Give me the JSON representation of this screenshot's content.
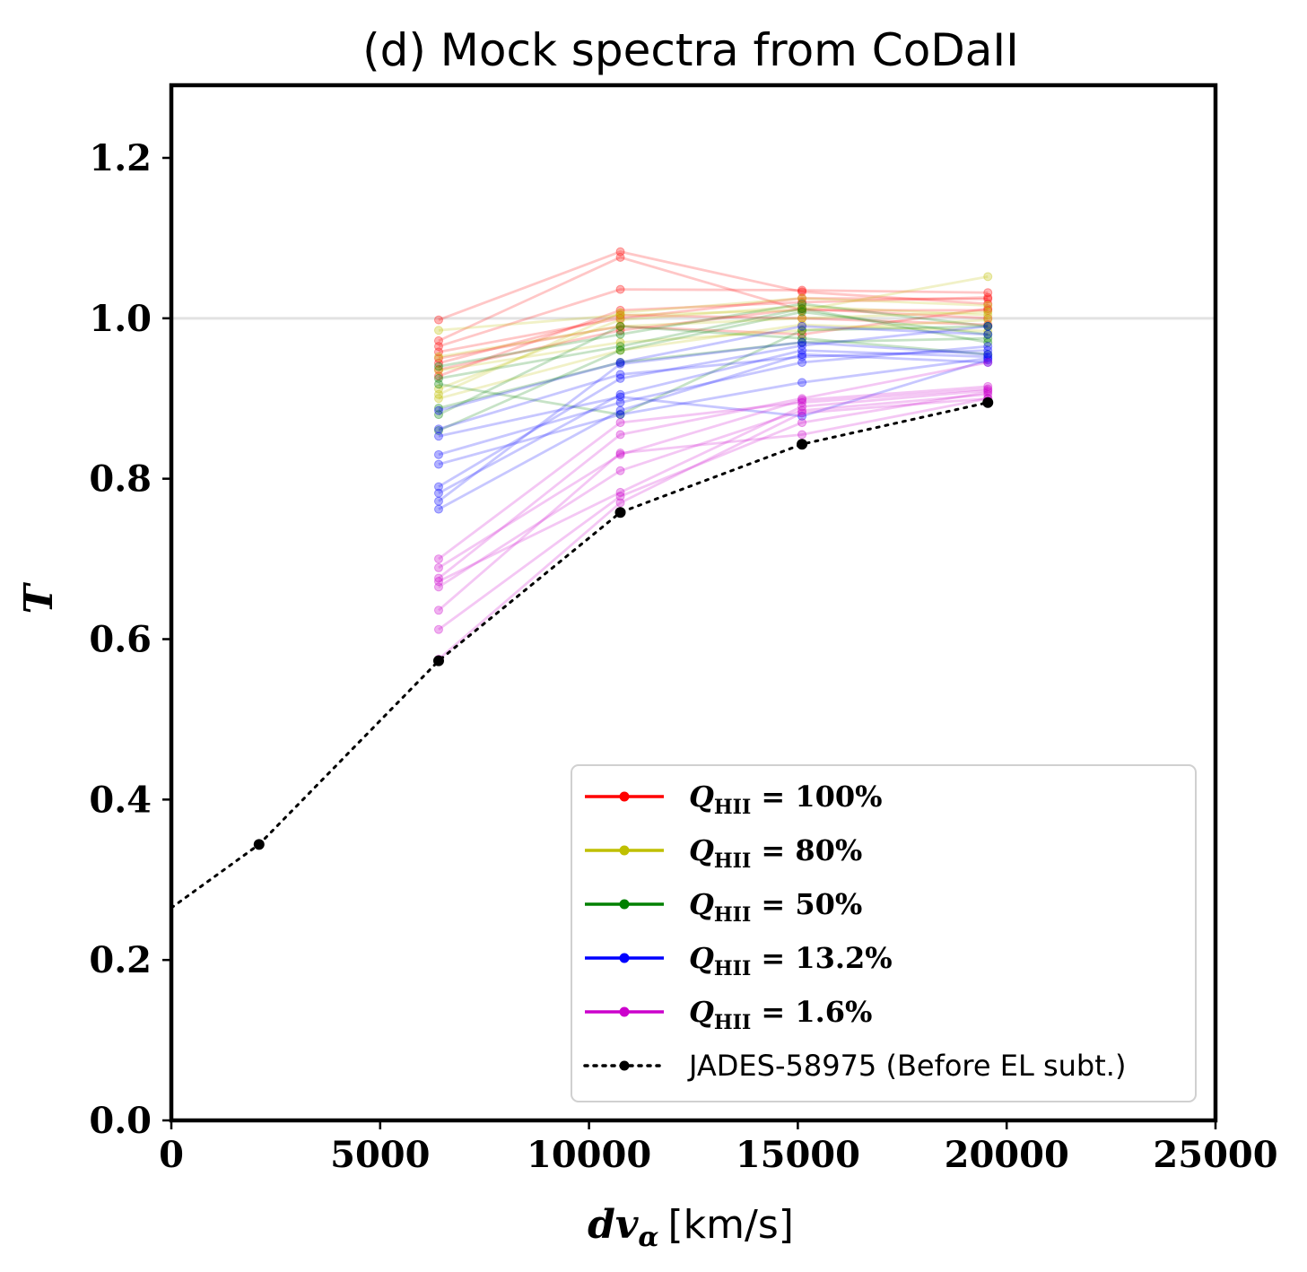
{
  "chart_data": {
    "type": "line",
    "title": "(d) Mock spectra from CoDaII",
    "xlabel_math": "dv",
    "xlabel_sub": "α",
    "xlabel_unit": "[km/s]",
    "ylabel": "T",
    "xlim": [
      0,
      25000
    ],
    "ylim": [
      0,
      1.29
    ],
    "xticks": [
      "0",
      "5000",
      "10000",
      "15000",
      "20000",
      "25000"
    ],
    "xtick_values": [
      0,
      5000,
      10000,
      15000,
      20000,
      25000
    ],
    "yticks": [
      "0.0",
      "0.2",
      "0.4",
      "0.6",
      "0.8",
      "1.0",
      "1.2"
    ],
    "ytick_values": [
      0,
      0.2,
      0.4,
      0.6,
      0.8,
      1.0,
      1.2
    ],
    "reference_line": 1.0,
    "legend_position": "lower-right",
    "sim_x": [
      6400,
      10750,
      15100,
      19550
    ],
    "series": [
      {
        "name": "Q_HII = 100%",
        "label_main": "Q",
        "label_sub": "HII",
        "label_rest": " = 100%",
        "color": "#ff0000",
        "runs": [
          [
            0.998,
            1.083,
            1.033,
            1.018
          ],
          [
            0.972,
            1.076,
            1.01,
            1.01
          ],
          [
            0.965,
            1.036,
            1.035,
            1.032
          ],
          [
            0.958,
            1.0,
            1.025,
            1.024
          ],
          [
            0.95,
            0.99,
            0.98,
            1.012
          ],
          [
            0.944,
            1.004,
            1.0,
            0.992
          ],
          [
            0.936,
            0.985,
            1.012,
            1.0
          ],
          [
            0.928,
            1.01,
            1.02,
            1.026
          ]
        ]
      },
      {
        "name": "Q_HII = 80%",
        "label_main": "Q",
        "label_sub": "HII",
        "label_rest": " = 80%",
        "color": "#bfbf00",
        "runs": [
          [
            0.985,
            1.004,
            1.01,
            1.052
          ],
          [
            0.952,
            0.99,
            1.0,
            1.008
          ],
          [
            0.935,
            0.97,
            0.985,
            0.998
          ],
          [
            0.912,
            0.998,
            1.015,
            1.004
          ],
          [
            0.9,
            0.96,
            0.992,
            0.984
          ],
          [
            0.905,
            1.007,
            1.025,
            1.016
          ]
        ]
      },
      {
        "name": "Q_HII = 50%",
        "label_main": "Q",
        "label_sub": "HII",
        "label_rest": " = 50%",
        "color": "#008000",
        "runs": [
          [
            0.94,
            0.98,
            1.018,
            0.99
          ],
          [
            0.925,
            0.965,
            1.012,
            0.97
          ],
          [
            0.918,
            0.88,
            0.985,
            0.99
          ],
          [
            0.888,
            0.945,
            0.97,
            0.975
          ],
          [
            0.88,
            0.99,
            0.975,
            0.955
          ],
          [
            0.86,
            0.96,
            1.008,
            0.98
          ]
        ]
      },
      {
        "name": "Q_HII = 13.2%",
        "label_main": "Q",
        "label_sub": "HII",
        "label_rest": " = 13.2%",
        "color": "#0000ff",
        "runs": [
          [
            0.885,
            0.945,
            0.99,
            0.98
          ],
          [
            0.862,
            0.93,
            0.952,
            0.96
          ],
          [
            0.853,
            0.902,
            0.878,
            0.948
          ],
          [
            0.83,
            0.895,
            0.945,
            0.965
          ],
          [
            0.818,
            0.88,
            0.92,
            0.95
          ],
          [
            0.79,
            0.925,
            0.966,
            0.99
          ],
          [
            0.782,
            0.905,
            0.96,
            0.952
          ],
          [
            0.772,
            0.943,
            0.97,
            0.955
          ],
          [
            0.762,
            0.885,
            0.955,
            0.945
          ]
        ]
      },
      {
        "name": "Q_HII = 1.6%",
        "label_main": "Q",
        "label_sub": "HII",
        "label_rest": " = 1.6%",
        "color": "#cc00cc",
        "runs": [
          [
            0.689,
            0.83,
            0.898,
            0.915
          ],
          [
            0.676,
            0.855,
            0.9,
            0.945
          ],
          [
            0.672,
            0.783,
            0.89,
            0.91
          ],
          [
            0.665,
            0.81,
            0.885,
            0.905
          ],
          [
            0.636,
            0.832,
            0.855,
            0.9
          ],
          [
            0.612,
            0.778,
            0.87,
            0.908
          ],
          [
            0.575,
            0.77,
            0.882,
            0.9
          ],
          [
            0.7,
            0.87,
            0.895,
            0.912
          ]
        ]
      },
      {
        "name": "JADES-58975 (Before EL subt.)",
        "label_text": "JADES-58975 (Before EL subt.)",
        "color": "#000000",
        "style": "dotted",
        "x": [
          0,
          2100,
          6400,
          10750,
          15100,
          19550
        ],
        "y": [
          0.265,
          0.344,
          0.573,
          0.758,
          0.843,
          0.895
        ]
      }
    ]
  }
}
